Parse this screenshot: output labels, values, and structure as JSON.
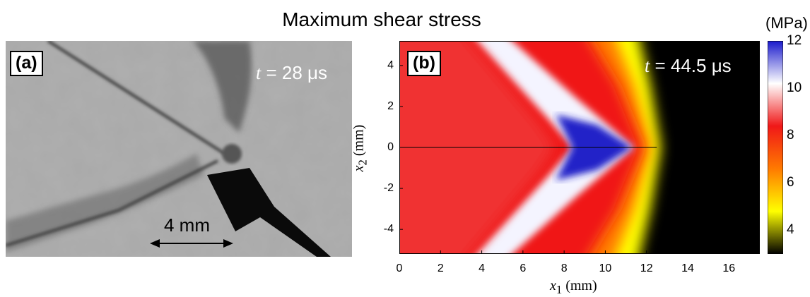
{
  "figure": {
    "title": "Maximum shear stress",
    "colorbar_unit": "(MPa)"
  },
  "panel_a": {
    "label": "(a)",
    "time_var": "t",
    "time_value": " = 28 μs",
    "scale_bar_label": "4 mm"
  },
  "panel_b": {
    "label": "(b)",
    "time_var": "t",
    "time_value": " = 44.5 μs"
  },
  "colors": {
    "background_black": "#000000",
    "high_blue": "#1a1acc",
    "mid_white": "#ffffff",
    "red": "#f01818",
    "orange": "#ff7a00",
    "yellow": "#ffff00"
  },
  "chart_data": {
    "type": "heatmap",
    "title": "Maximum shear stress",
    "xlabel_var": "x",
    "xlabel_sub": "1",
    "xlabel_unit": " (mm)",
    "ylabel_var": "x",
    "ylabel_sub": "2",
    "ylabel_unit": " (mm)",
    "xlim": [
      0,
      17.5
    ],
    "ylim": [
      -5.2,
      5.2
    ],
    "xticks": [
      0,
      2,
      4,
      6,
      8,
      10,
      12,
      14,
      16
    ],
    "yticks": [
      -4,
      -2,
      0,
      2,
      4
    ],
    "colorbar": {
      "label": "(MPa)",
      "range": [
        3,
        12
      ],
      "ticks": [
        4,
        6,
        8,
        10,
        12
      ],
      "colormap": [
        "#000000",
        "#ffff00",
        "#ff7a00",
        "#f01818",
        "#ffffff",
        "#1a1acc"
      ]
    },
    "front_tip_x": 12.5,
    "peak_value_location_x": 10,
    "regions": [
      {
        "name": "low stress (black)",
        "x_from": 12.5,
        "value": 3
      },
      {
        "name": "yellow front",
        "x_approx": 12,
        "value": 4.5
      },
      {
        "name": "red body",
        "x_approx": 3,
        "value": 8
      },
      {
        "name": "white shear band",
        "x_approx": 7.5,
        "value": 10
      },
      {
        "name": "blue peak",
        "x_approx": 10,
        "value": 12
      }
    ]
  }
}
